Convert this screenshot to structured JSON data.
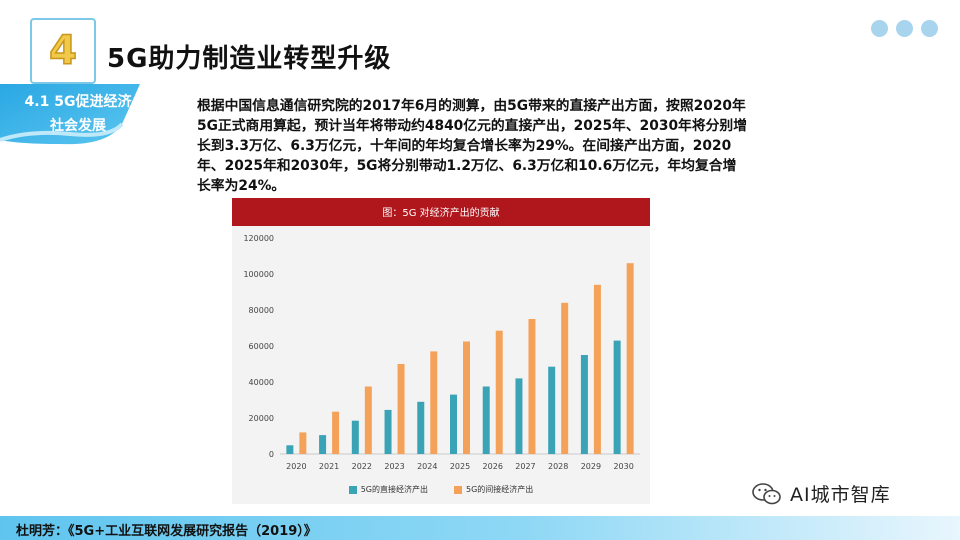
{
  "header": {
    "section_number": "4",
    "title": "5G助力制造业转型升级"
  },
  "sidebar": {
    "ribbon_line1": "4.1 5G促进经济",
    "ribbon_line2": "社会发展"
  },
  "intro_text": "根据中国信息通信研究院的2017年6月的测算，由5G带来的直接产出方面，按照2020年5G正式商用算起，预计当年将带动约4840亿元的直接产出，2025年、2030年将分别增长到3.3万亿、6.3万亿元，十年间的年均复合增长率为29%。在间接产出方面，2020年、2025年和2030年，5G将分别带动1.2万亿、6.3万亿和10.6万亿元，年均复合增长率为24%。",
  "chart_data": {
    "type": "bar",
    "title": "图：5G 对经济产出的贡献",
    "categories": [
      "2020",
      "2021",
      "2022",
      "2023",
      "2024",
      "2025",
      "2026",
      "2027",
      "2028",
      "2029",
      "2030"
    ],
    "series": [
      {
        "name": "5G的直接经济产出",
        "color": "#3aa3b6",
        "values": [
          4840,
          10500,
          18500,
          24500,
          29000,
          33000,
          37500,
          42000,
          48500,
          55000,
          63000
        ]
      },
      {
        "name": "5G的间接经济产出",
        "color": "#f4a25a",
        "values": [
          12000,
          23500,
          37500,
          50000,
          57000,
          62500,
          68500,
          75000,
          84000,
          94000,
          106000
        ]
      }
    ],
    "ylim": [
      0,
      120000
    ],
    "yticks": [
      0,
      20000,
      40000,
      60000,
      80000,
      100000,
      120000
    ],
    "legend_position": "bottom"
  },
  "watermark": "AI城市智库",
  "footer": {
    "source": "杜明芳：《5G+工业互联网发展研究报告（2019）》"
  },
  "colors": {
    "accent_blue": "#5fc5ef",
    "chart_title_bg": "#b0171c"
  }
}
